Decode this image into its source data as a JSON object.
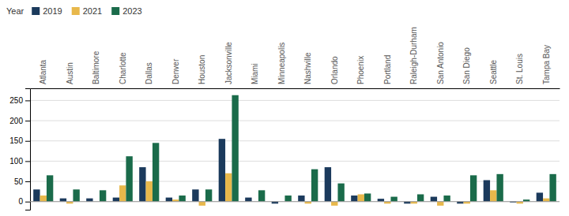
{
  "chart_data": {
    "type": "bar",
    "categories": [
      "Atlanta",
      "Austin",
      "Baltimore",
      "Charlotte",
      "Dallas",
      "Denver",
      "Houston",
      "Jacksonville",
      "Miami",
      "Minneapolis",
      "Nashville",
      "Orlando",
      "Phoenix",
      "Portland",
      "Raleigh-Durham",
      "San Antonio",
      "San Diego",
      "Seattle",
      "St. Louis",
      "Tampa Bay"
    ],
    "series": [
      {
        "name": "2019",
        "color": "#1b3a5c",
        "values": [
          30,
          8,
          8,
          10,
          85,
          10,
          30,
          155,
          10,
          -5,
          15,
          85,
          15,
          7,
          -5,
          12,
          -5,
          53,
          -2,
          22
        ]
      },
      {
        "name": "2021",
        "color": "#e8b84b",
        "values": [
          15,
          -5,
          0,
          40,
          50,
          5,
          -10,
          70,
          0,
          0,
          -5,
          -10,
          18,
          -5,
          -5,
          -10,
          -5,
          28,
          -5,
          8
        ]
      },
      {
        "name": "2023",
        "color": "#1a6b4a",
        "values": [
          65,
          30,
          28,
          112,
          145,
          15,
          30,
          263,
          28,
          15,
          80,
          45,
          20,
          12,
          18,
          15,
          65,
          68,
          5,
          68
        ]
      }
    ],
    "legend_title": "Year",
    "legend": "top-left",
    "ylim": [
      -20,
      280
    ],
    "yticks": [
      0,
      50,
      100,
      150,
      200,
      250
    ],
    "grid": true
  }
}
